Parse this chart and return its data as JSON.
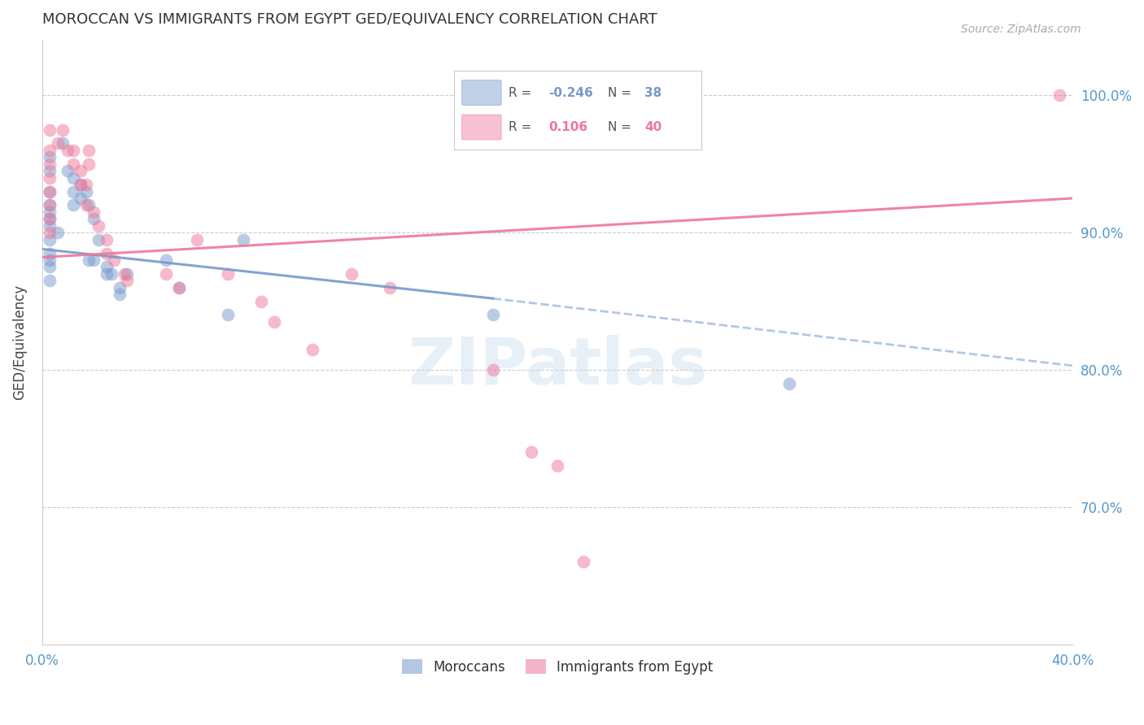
{
  "title": "MOROCCAN VS IMMIGRANTS FROM EGYPT GED/EQUIVALENCY CORRELATION CHART",
  "source": "Source: ZipAtlas.com",
  "ylabel": "GED/Equivalency",
  "xlim": [
    0.0,
    0.4
  ],
  "ylim": [
    0.6,
    1.04
  ],
  "blue_color": "#7799cc",
  "pink_color": "#ee7799",
  "blue_scatter": [
    [
      0.003,
      0.955
    ],
    [
      0.003,
      0.945
    ],
    [
      0.003,
      0.93
    ],
    [
      0.003,
      0.92
    ],
    [
      0.003,
      0.915
    ],
    [
      0.003,
      0.91
    ],
    [
      0.003,
      0.905
    ],
    [
      0.003,
      0.895
    ],
    [
      0.003,
      0.885
    ],
    [
      0.003,
      0.88
    ],
    [
      0.003,
      0.875
    ],
    [
      0.003,
      0.865
    ],
    [
      0.006,
      0.9
    ],
    [
      0.008,
      0.965
    ],
    [
      0.01,
      0.945
    ],
    [
      0.012,
      0.94
    ],
    [
      0.012,
      0.93
    ],
    [
      0.012,
      0.92
    ],
    [
      0.015,
      0.935
    ],
    [
      0.015,
      0.925
    ],
    [
      0.017,
      0.93
    ],
    [
      0.018,
      0.92
    ],
    [
      0.018,
      0.88
    ],
    [
      0.02,
      0.91
    ],
    [
      0.02,
      0.88
    ],
    [
      0.022,
      0.895
    ],
    [
      0.025,
      0.875
    ],
    [
      0.025,
      0.87
    ],
    [
      0.027,
      0.87
    ],
    [
      0.03,
      0.86
    ],
    [
      0.03,
      0.855
    ],
    [
      0.033,
      0.87
    ],
    [
      0.048,
      0.88
    ],
    [
      0.053,
      0.86
    ],
    [
      0.072,
      0.84
    ],
    [
      0.078,
      0.895
    ],
    [
      0.175,
      0.84
    ],
    [
      0.29,
      0.79
    ]
  ],
  "pink_scatter": [
    [
      0.003,
      0.975
    ],
    [
      0.003,
      0.96
    ],
    [
      0.003,
      0.95
    ],
    [
      0.003,
      0.94
    ],
    [
      0.003,
      0.93
    ],
    [
      0.003,
      0.92
    ],
    [
      0.003,
      0.91
    ],
    [
      0.003,
      0.9
    ],
    [
      0.006,
      0.965
    ],
    [
      0.008,
      0.975
    ],
    [
      0.01,
      0.96
    ],
    [
      0.012,
      0.96
    ],
    [
      0.012,
      0.95
    ],
    [
      0.015,
      0.945
    ],
    [
      0.015,
      0.935
    ],
    [
      0.017,
      0.935
    ],
    [
      0.017,
      0.92
    ],
    [
      0.018,
      0.96
    ],
    [
      0.018,
      0.95
    ],
    [
      0.02,
      0.915
    ],
    [
      0.022,
      0.905
    ],
    [
      0.025,
      0.895
    ],
    [
      0.025,
      0.885
    ],
    [
      0.028,
      0.88
    ],
    [
      0.032,
      0.87
    ],
    [
      0.033,
      0.865
    ],
    [
      0.048,
      0.87
    ],
    [
      0.053,
      0.86
    ],
    [
      0.06,
      0.895
    ],
    [
      0.072,
      0.87
    ],
    [
      0.085,
      0.85
    ],
    [
      0.09,
      0.835
    ],
    [
      0.105,
      0.815
    ],
    [
      0.12,
      0.87
    ],
    [
      0.135,
      0.86
    ],
    [
      0.175,
      0.8
    ],
    [
      0.19,
      0.74
    ],
    [
      0.2,
      0.73
    ],
    [
      0.21,
      0.66
    ],
    [
      0.395,
      1.0
    ]
  ],
  "blue_line_solid": [
    [
      0.0,
      0.888
    ],
    [
      0.175,
      0.852
    ]
  ],
  "blue_line_dashed": [
    [
      0.175,
      0.852
    ],
    [
      0.4,
      0.803
    ]
  ],
  "pink_line": [
    [
      0.0,
      0.882
    ],
    [
      0.4,
      0.925
    ]
  ],
  "watermark_text": "ZIPatlas",
  "bg_color": "#ffffff",
  "grid_color": "#cccccc",
  "title_color": "#333333",
  "tick_label_color": "#5599cc"
}
